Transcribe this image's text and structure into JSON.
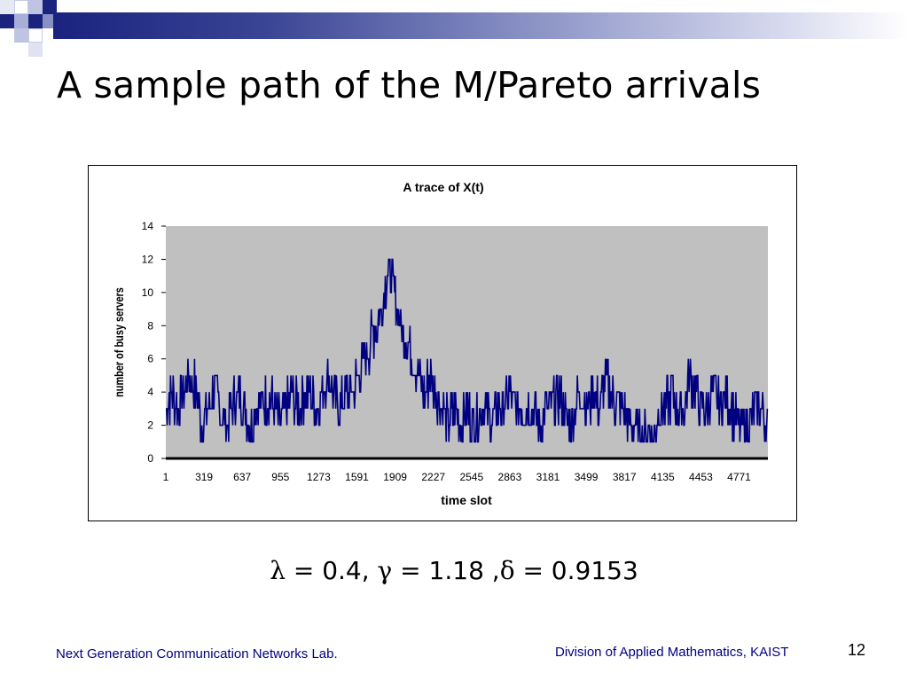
{
  "slide": {
    "title": "A sample path of the M/Pareto arrivals",
    "page_number": "12",
    "footer_left": "Next Generation Communication Networks Lab.",
    "footer_right": "Division of Applied Mathematics, KAIST"
  },
  "parameters": {
    "lambda_symbol": "λ",
    "lambda_value": " =  0.4, ",
    "gamma_symbol": "γ",
    "gamma_value": " = 1.18 ,",
    "delta_symbol": "δ",
    "delta_value": " = 0.9153"
  },
  "colors": {
    "series": "#000080",
    "plot_area": "#c0c0c0",
    "brand_dark": "#1a237e",
    "brand_light": "#d6d9ee",
    "footer_text": "#000080"
  },
  "chart_data": {
    "type": "line",
    "title": "A trace of X(t)",
    "xlabel": "time slot",
    "ylabel": "number of busy servers",
    "x_tick_labels": [
      "1",
      "319",
      "637",
      "955",
      "1273",
      "1591",
      "1909",
      "2227",
      "2545",
      "2863",
      "3181",
      "3499",
      "3817",
      "4135",
      "4453",
      "4771"
    ],
    "xlim": [
      1,
      5000
    ],
    "y_ticks": [
      0,
      2,
      4,
      6,
      8,
      10,
      12,
      14
    ],
    "ylim": [
      0,
      14
    ],
    "grid": false,
    "legend": "none",
    "series": [
      {
        "x_step": 50,
        "x_start": 1,
        "values": [
          3,
          4,
          3,
          4,
          5,
          4,
          2,
          3,
          4,
          3,
          2,
          3,
          4,
          3,
          2,
          3,
          3,
          4,
          3,
          2,
          3,
          4,
          3,
          4,
          4,
          3,
          4,
          5,
          4,
          3,
          4,
          4,
          5,
          6,
          7,
          8,
          9,
          12,
          10,
          8,
          7,
          6,
          5,
          4,
          5,
          4,
          3,
          2,
          3,
          2,
          3,
          2,
          3,
          3,
          2,
          3,
          3,
          4,
          3,
          3,
          3,
          3,
          2,
          3,
          3,
          4,
          3,
          2,
          3,
          4,
          3,
          4,
          3,
          5,
          4,
          3,
          3,
          2,
          2,
          1,
          2,
          1,
          3,
          3,
          4,
          3,
          3,
          5,
          4,
          3,
          3,
          4,
          3,
          4,
          3,
          2,
          2,
          2,
          3,
          3,
          2
        ]
      }
    ],
    "extremes": {
      "max": 12,
      "min": 1,
      "visible_peaks": [
        9,
        9,
        10,
        9,
        8,
        9,
        8
      ]
    }
  }
}
